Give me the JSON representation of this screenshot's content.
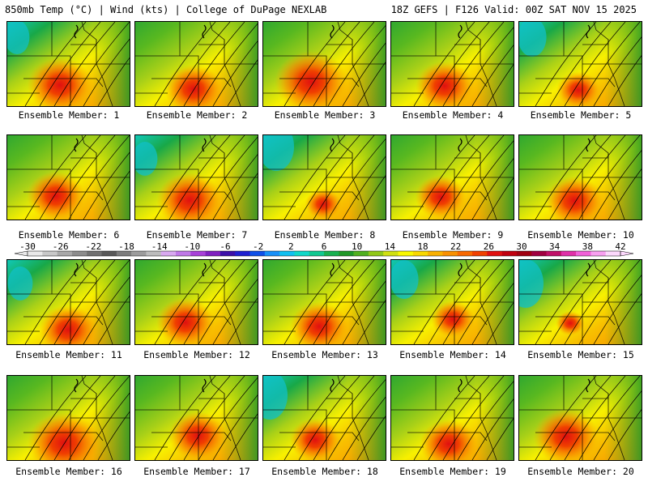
{
  "header": {
    "left": "850mb Temp (°C) | Wind (kts) | College of DuPage NEXLAB",
    "right": "18Z GEFS | F126 Valid: 00Z SAT NOV 15 2025"
  },
  "legend": {
    "ticks": [
      "-30",
      "-26",
      "-22",
      "-18",
      "-14",
      "-10",
      "-6",
      "-2",
      "2",
      "6",
      "10",
      "14",
      "18",
      "22",
      "26",
      "30",
      "34",
      "38",
      "42"
    ],
    "colors": [
      "#e8e8e8",
      "#c8c8c8",
      "#a8a8a8",
      "#8c8c8c",
      "#707070",
      "#585858",
      "#7c7c7c",
      "#9c9c9c",
      "#bcbcbc",
      "#d8a8f0",
      "#c078e8",
      "#a840d8",
      "#8020c0",
      "#3c10a8",
      "#2020d0",
      "#1050e8",
      "#1890f8",
      "#10c0f0",
      "#10d8c8",
      "#10c890",
      "#18b050",
      "#209828",
      "#50b020",
      "#90c818",
      "#d0e010",
      "#f8f800",
      "#f8d800",
      "#f8b000",
      "#f89000",
      "#f86800",
      "#f04000",
      "#e01010",
      "#c00010",
      "#a00010",
      "#a00040",
      "#c01068",
      "#e030a8",
      "#f060d8",
      "#f8a0f0",
      "#fcd8fc"
    ],
    "range_c": [
      -30,
      42
    ]
  },
  "panels": [
    {
      "label": "Ensemble Member: 1",
      "member": 1,
      "cool": 0.7,
      "warm": 0.9
    },
    {
      "label": "Ensemble Member: 2",
      "member": 2,
      "cool": 0.3,
      "warm": 0.8
    },
    {
      "label": "Ensemble Member: 3",
      "member": 3,
      "cool": 0.2,
      "warm": 1.0
    },
    {
      "label": "Ensemble Member: 4",
      "member": 4,
      "cool": 0.4,
      "warm": 0.8
    },
    {
      "label": "Ensemble Member: 5",
      "member": 5,
      "cool": 0.8,
      "warm": 0.6
    },
    {
      "label": "Ensemble Member: 6",
      "member": 6,
      "cool": 0.3,
      "warm": 0.8
    },
    {
      "label": "Ensemble Member: 7",
      "member": 7,
      "cool": 0.7,
      "warm": 0.9
    },
    {
      "label": "Ensemble Member: 8",
      "member": 8,
      "cool": 1.0,
      "warm": 0.5
    },
    {
      "label": "Ensemble Member: 9",
      "member": 9,
      "cool": 0.3,
      "warm": 0.7
    },
    {
      "label": "Ensemble Member: 10",
      "member": 10,
      "cool": 0.2,
      "warm": 0.8
    },
    {
      "label": "Ensemble Member: 11",
      "member": 11,
      "cool": 0.7,
      "warm": 0.8
    },
    {
      "label": "Ensemble Member: 12",
      "member": 12,
      "cool": 0.5,
      "warm": 0.8
    },
    {
      "label": "Ensemble Member: 13",
      "member": 13,
      "cool": 0.3,
      "warm": 0.8
    },
    {
      "label": "Ensemble Member: 14",
      "member": 14,
      "cool": 0.8,
      "warm": 0.6
    },
    {
      "label": "Ensemble Member: 15",
      "member": 15,
      "cool": 1.0,
      "warm": 0.4
    },
    {
      "label": "Ensemble Member: 16",
      "member": 16,
      "cool": 0.2,
      "warm": 1.0
    },
    {
      "label": "Ensemble Member: 17",
      "member": 17,
      "cool": 0.4,
      "warm": 0.8
    },
    {
      "label": "Ensemble Member: 18",
      "member": 18,
      "cool": 1.0,
      "warm": 0.7
    },
    {
      "label": "Ensemble Member: 19",
      "member": 19,
      "cool": 0.3,
      "warm": 0.8
    },
    {
      "label": "Ensemble Member: 20",
      "member": 20,
      "cool": 0.4,
      "warm": 0.9
    }
  ]
}
